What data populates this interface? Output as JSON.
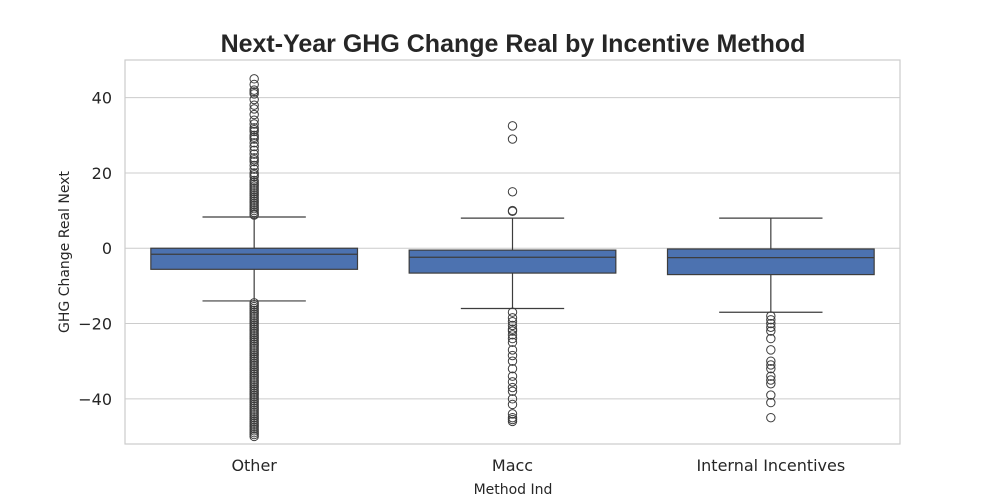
{
  "chart_data": {
    "type": "box",
    "title": "Next-Year GHG Change Real by Incentive Method",
    "xlabel": "Method Ind",
    "ylabel": "GHG Change Real Next",
    "ylim": [
      -52,
      50
    ],
    "yticks": [
      -40,
      -20,
      0,
      20,
      40
    ],
    "ytick_labels": [
      "−40",
      "−20",
      "0",
      "20",
      "40"
    ],
    "grid": true,
    "box_color": "#4c72b0",
    "line_color": "#3d3d3d",
    "categories": [
      "Other",
      "Macc",
      "Internal Incentives"
    ],
    "boxes": [
      {
        "category": "Other",
        "q1": -5.6,
        "median": -1.6,
        "q3": 0.0,
        "whisker_low": -14.0,
        "whisker_high": 8.3,
        "fliers": [
          45,
          43.5,
          42,
          41.5,
          41,
          39.5,
          38,
          37,
          35.5,
          34,
          33,
          32,
          31.5,
          31,
          30,
          29.5,
          29,
          28,
          27,
          26,
          25,
          24,
          23.5,
          23,
          22,
          21,
          20,
          19.5,
          19,
          18,
          17.5,
          17,
          16.5,
          16,
          15.5,
          15,
          14.5,
          14,
          13.5,
          13,
          12.5,
          12,
          11.5,
          11,
          10.5,
          10,
          9.5,
          9,
          8.8,
          -14.5,
          -15,
          -15.5,
          -16,
          -16.5,
          -17,
          -17.5,
          -18,
          -18.5,
          -19,
          -19.5,
          -20,
          -20.5,
          -21,
          -21.5,
          -22,
          -22.5,
          -23,
          -23.5,
          -24,
          -24.5,
          -25,
          -25.5,
          -26,
          -26.5,
          -27,
          -27.5,
          -28,
          -28.5,
          -29,
          -29.5,
          -30,
          -30.5,
          -31,
          -31.5,
          -32,
          -32.5,
          -33,
          -33.5,
          -34,
          -34.5,
          -35,
          -35.5,
          -36,
          -36.5,
          -37,
          -37.5,
          -38,
          -38.5,
          -39,
          -39.5,
          -40,
          -40.5,
          -41,
          -41.5,
          -42,
          -42.5,
          -43,
          -43.5,
          -44,
          -44.5,
          -45,
          -45.5,
          -46,
          -46.5,
          -47,
          -47.5,
          -48,
          -48.5,
          -49,
          -49.5,
          -50
        ]
      },
      {
        "category": "Macc",
        "q1": -6.6,
        "median": -2.4,
        "q3": -0.5,
        "whisker_low": -16.0,
        "whisker_high": 8.0,
        "fliers": [
          32.5,
          29,
          15,
          10,
          9.8,
          -17,
          -18.5,
          -19.5,
          -20.5,
          -21.5,
          -22,
          -23,
          -24,
          -25,
          -27,
          -28.5,
          -30,
          -32,
          -34,
          -35.5,
          -37,
          -38,
          -40,
          -41.5,
          -44,
          -45,
          -45.5,
          -46
        ]
      },
      {
        "category": "Internal Incentives",
        "q1": -7.0,
        "median": -2.5,
        "q3": -0.2,
        "whisker_low": -17.0,
        "whisker_high": 8.0,
        "fliers": [
          -18,
          -19,
          -20,
          -21,
          -22,
          -24,
          -27,
          -30,
          -31,
          -32,
          -34,
          -35,
          -36,
          -39,
          -41,
          -45
        ]
      }
    ]
  }
}
